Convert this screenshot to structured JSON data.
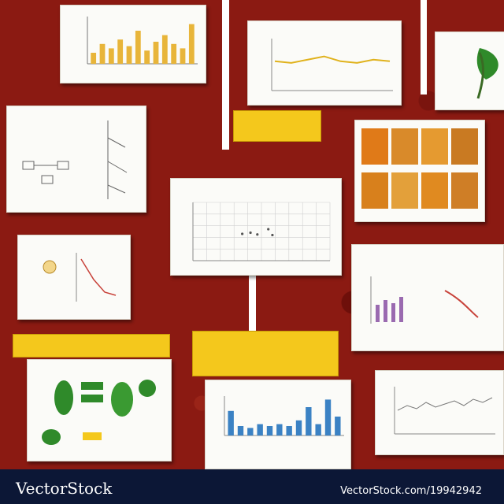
{
  "watermark": {
    "brand": "VectorStock",
    "image_id": "VectorStock.com/19942942"
  },
  "colors": {
    "background": "#8b1a12",
    "footer": "#0c1736",
    "accent_yellow": "#f4c81c",
    "bar_blue": "#3b82c4",
    "bar_gold": "#e8b53a"
  },
  "chart_data": [
    {
      "type": "bar",
      "values": [
        10,
        18,
        14,
        22,
        16,
        30,
        12,
        20,
        26,
        18,
        14,
        36
      ],
      "color": "#e8b53a",
      "ylim": [
        0,
        40
      ]
    },
    {
      "type": "line",
      "values": [
        18,
        17,
        19,
        21,
        18,
        17,
        19,
        18
      ],
      "ylim": [
        0,
        30
      ]
    },
    {
      "type": "scatter",
      "points": [
        [
          0.58,
          0.44
        ],
        [
          0.42,
          0.48
        ],
        [
          0.47,
          0.45
        ],
        [
          0.55,
          0.54
        ],
        [
          0.36,
          0.46
        ]
      ],
      "grid": true
    },
    {
      "type": "bar",
      "values": [
        26,
        10,
        8,
        12,
        10,
        12,
        10,
        16,
        30,
        12,
        38,
        20
      ],
      "color": "#3b82c4",
      "ylim": [
        0,
        40
      ]
    }
  ]
}
